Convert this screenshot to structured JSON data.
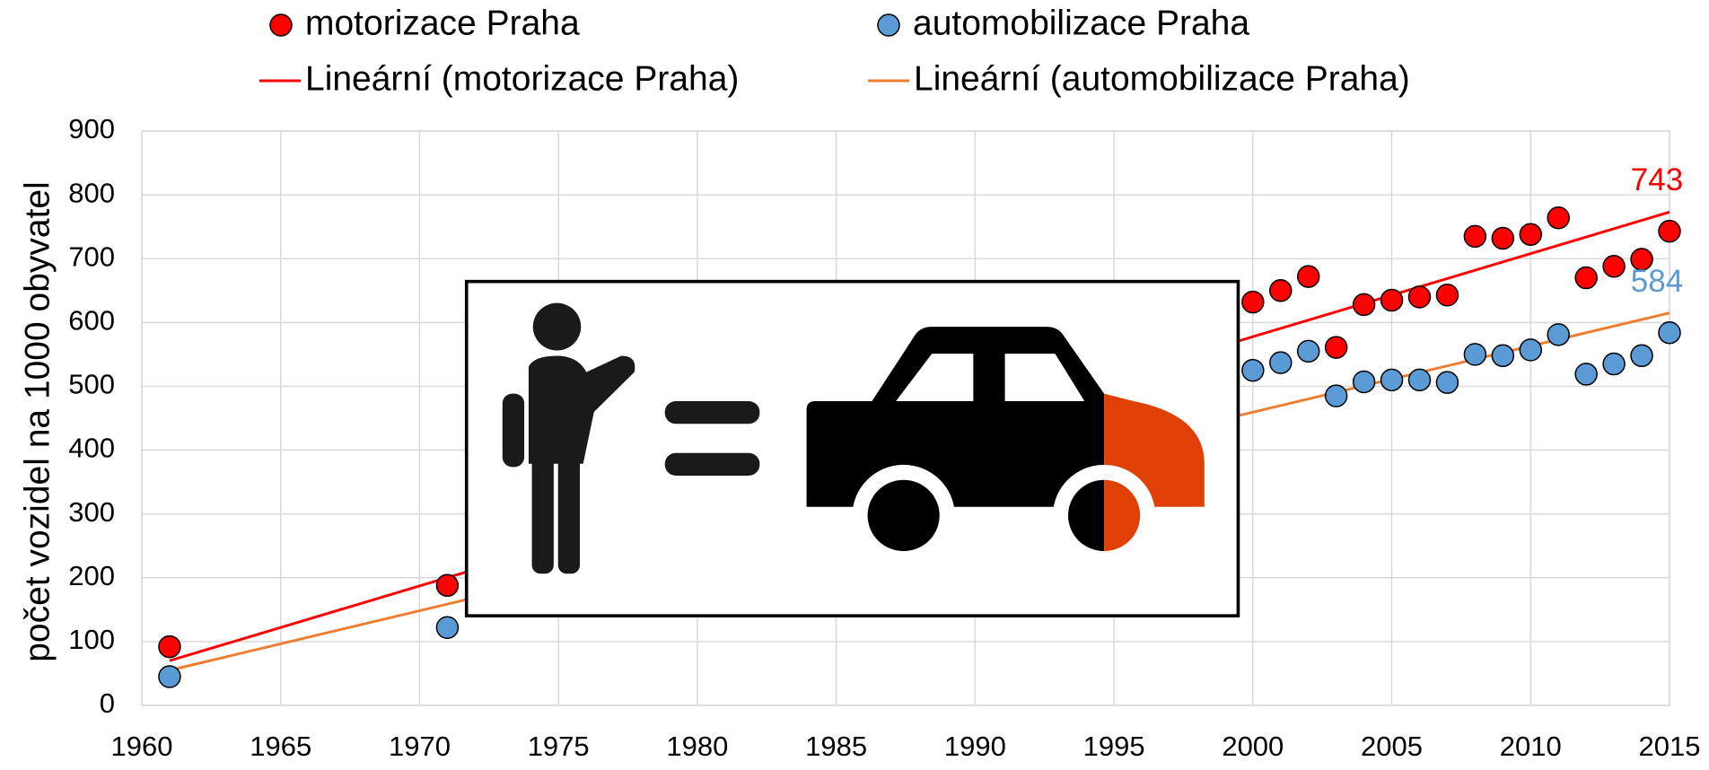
{
  "chart_data": {
    "type": "scatter",
    "y_axis_label": "počet vozidel na 1000 obyvatel",
    "xlim": [
      1960,
      2015
    ],
    "xticks": [
      1960,
      1965,
      1970,
      1975,
      1980,
      1985,
      1990,
      1995,
      2000,
      2005,
      2010,
      2015
    ],
    "ylim": [
      0,
      900
    ],
    "yticks": [
      0,
      100,
      200,
      300,
      400,
      500,
      600,
      700,
      800,
      900
    ],
    "grid": true,
    "legend": "top",
    "series": [
      {
        "name": "motorizace Praha",
        "color": "#ff0000",
        "x": [
          1961,
          1971,
          2000,
          2001,
          2002,
          2003,
          2004,
          2005,
          2006,
          2007,
          2008,
          2009,
          2010,
          2011,
          2012,
          2013,
          2014,
          2015
        ],
        "values": [
          92,
          188,
          632,
          650,
          672,
          561,
          628,
          635,
          640,
          643,
          735,
          732,
          738,
          764,
          670,
          688,
          699,
          743
        ]
      },
      {
        "name": "automobilizace Praha",
        "color": "#5b9bd5",
        "x": [
          1961,
          1971,
          2000,
          2001,
          2002,
          2003,
          2004,
          2005,
          2006,
          2007,
          2008,
          2009,
          2010,
          2011,
          2012,
          2013,
          2014,
          2015
        ],
        "values": [
          45,
          122,
          525,
          537,
          555,
          485,
          507,
          510,
          510,
          506,
          550,
          548,
          557,
          581,
          519,
          535,
          548,
          584
        ]
      }
    ],
    "trendlines": [
      {
        "name": "Lineární (motorizace Praha)",
        "color": "#ff0000",
        "x": [
          1961,
          2015
        ],
        "values": [
          70,
          773
        ]
      },
      {
        "name": "Lineární (automobilizace Praha)",
        "color": "#ed7d31",
        "x": [
          1961,
          2015
        ],
        "values": [
          55,
          615
        ]
      }
    ]
  }
}
